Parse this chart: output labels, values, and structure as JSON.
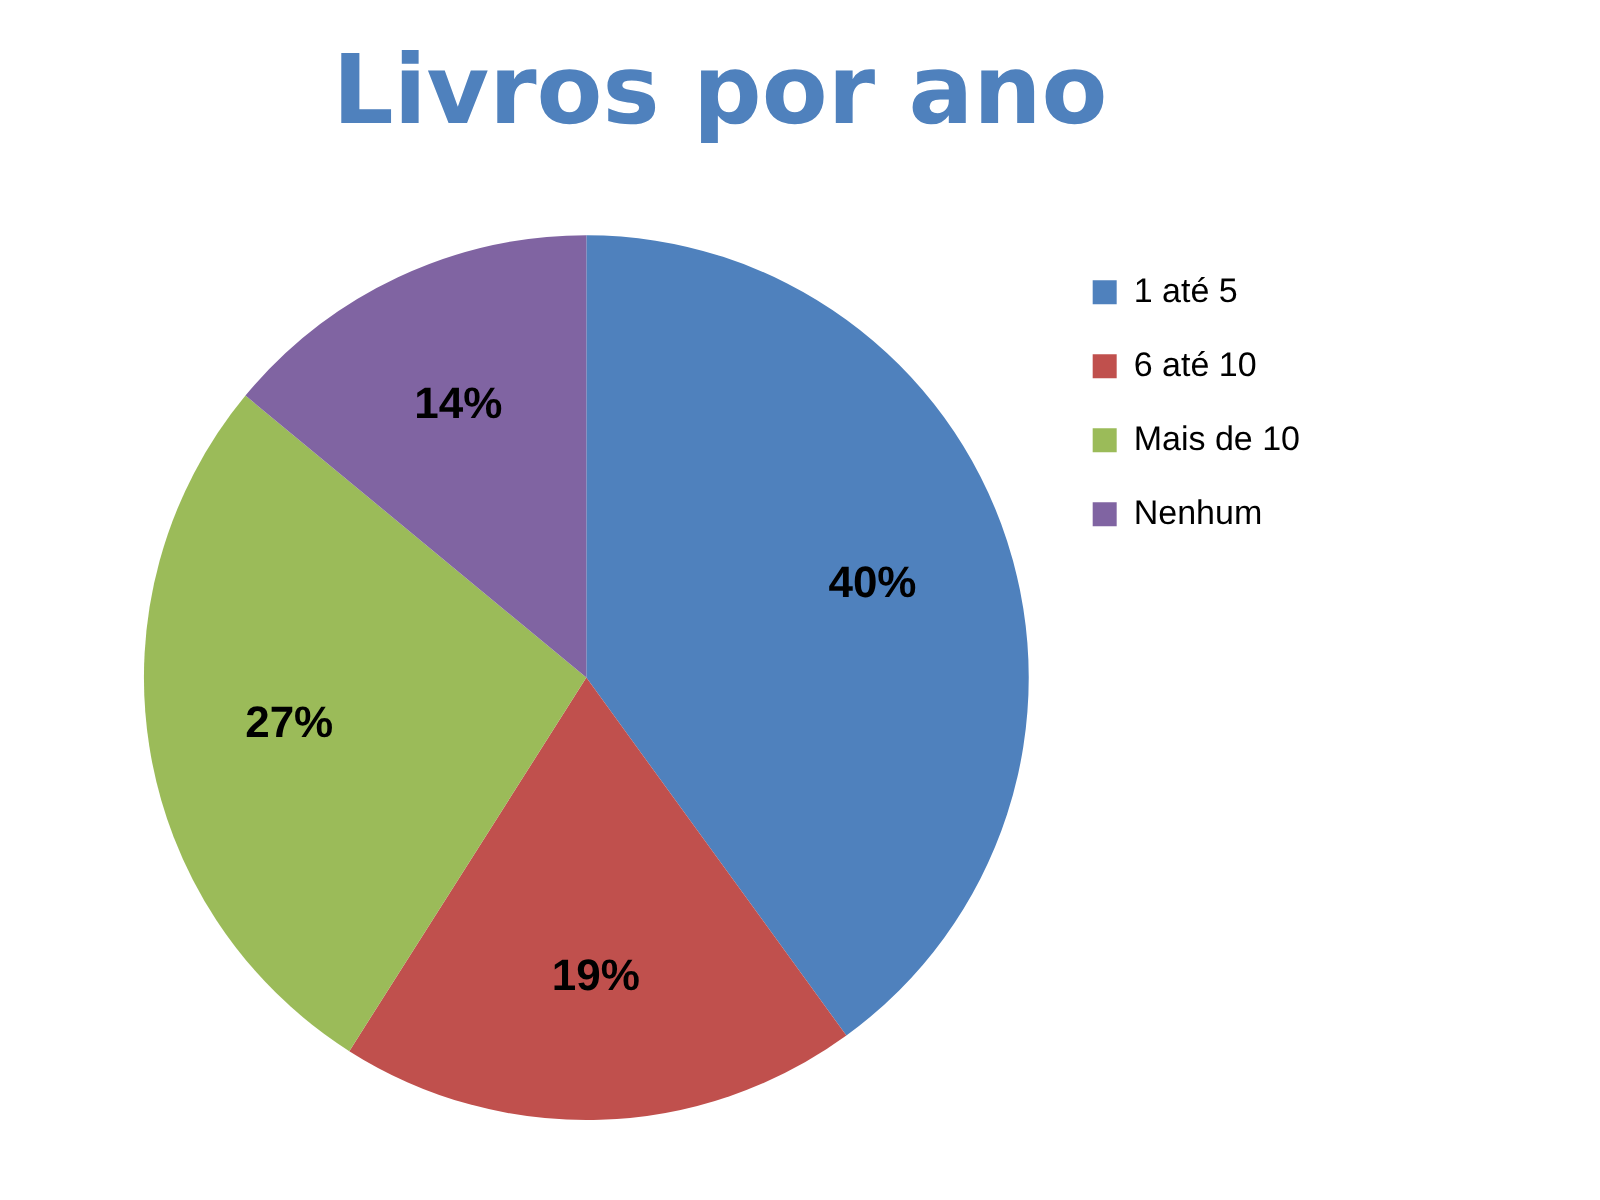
{
  "chart_data": {
    "type": "pie",
    "title": "Livros por ano",
    "categories": [
      "1 até 5",
      "6 até 10",
      "Mais de 10",
      "Nenhum"
    ],
    "values": [
      40,
      19,
      27,
      14
    ],
    "colors": [
      "#4f81bd",
      "#c0504d",
      "#9bbb59",
      "#8064a2"
    ],
    "value_labels": [
      "40%",
      "19%",
      "27%",
      "14%"
    ],
    "legend": "right"
  }
}
